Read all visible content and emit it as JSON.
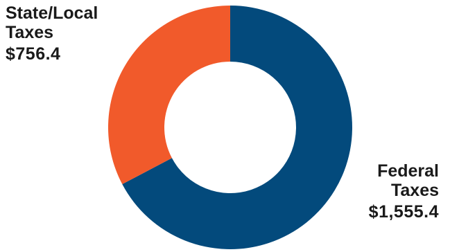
{
  "chart_data": {
    "type": "pie",
    "donut": true,
    "categories": [
      "State/Local Taxes",
      "Federal Taxes"
    ],
    "values": [
      756.4,
      1555.4
    ],
    "value_labels": [
      "$756.4",
      "$1,555.4"
    ],
    "colors": [
      "#f15a2b",
      "#034a7c"
    ],
    "start_angle_deg": 0,
    "direction": "clockwise-from-top, federal first",
    "title": "",
    "legend": "none"
  },
  "labels": {
    "state_local_line1": "State/Local",
    "state_local_line2": "Taxes",
    "state_local_value": "$756.4",
    "federal_line1": "Federal",
    "federal_line2": "Taxes",
    "federal_value": "$1,555.4"
  }
}
